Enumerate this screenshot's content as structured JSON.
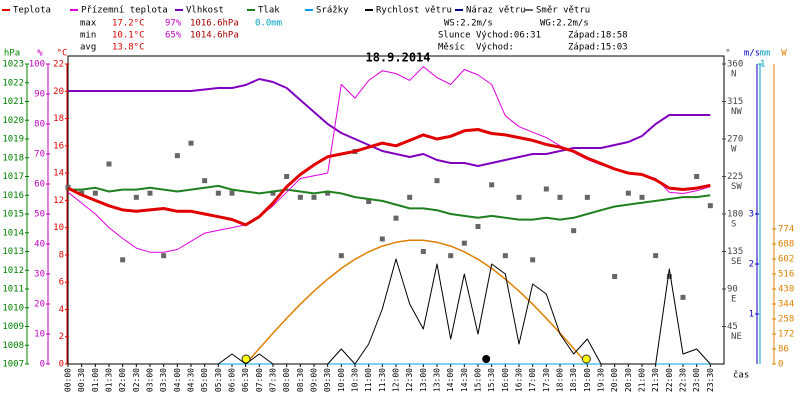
{
  "chart_data": {
    "type": "line",
    "title": "18.9.2014",
    "x_label": "čas",
    "categories": [
      "00:00",
      "00:30",
      "01:00",
      "01:30",
      "02:00",
      "02:30",
      "03:00",
      "03:30",
      "04:00",
      "04:30",
      "05:00",
      "05:30",
      "06:00",
      "06:30",
      "07:00",
      "07:30",
      "08:00",
      "08:30",
      "09:00",
      "09:30",
      "10:00",
      "10:30",
      "11:00",
      "11:30",
      "12:00",
      "12:30",
      "13:00",
      "13:30",
      "14:00",
      "14:30",
      "15:00",
      "15:30",
      "16:00",
      "16:30",
      "17:00",
      "17:30",
      "18:00",
      "18:30",
      "19:00",
      "19:30",
      "20:00",
      "20:30",
      "21:00",
      "21:30",
      "22:00",
      "22:30",
      "23:00",
      "23:30"
    ],
    "axes": {
      "hpa": {
        "label": "hPa",
        "color": "#008000",
        "side": "left",
        "lim": [
          1007,
          1023
        ],
        "ticks": [
          1007,
          1008,
          1009,
          1010,
          1011,
          1012,
          1013,
          1014,
          1015,
          1016,
          1017,
          1018,
          1019,
          1020,
          1021,
          1022,
          1023
        ]
      },
      "pct": {
        "label": "%",
        "color": "#c000c0",
        "side": "left",
        "lim": [
          0,
          100
        ],
        "ticks": [
          0,
          10,
          20,
          30,
          40,
          50,
          60,
          70,
          80,
          90,
          100
        ]
      },
      "temp": {
        "label": "°C",
        "color": "#e00000",
        "side": "left",
        "lim": [
          0,
          22
        ],
        "ticks": [
          0,
          2,
          4,
          6,
          8,
          10,
          12,
          14,
          16,
          18,
          20,
          22
        ]
      },
      "dir": {
        "label": "°",
        "color": "#444444",
        "side": "right",
        "lim": [
          0,
          360
        ],
        "ticks": [
          45,
          90,
          135,
          180,
          225,
          270,
          315,
          360
        ],
        "tick_names": [
          "NE",
          "E",
          "SE",
          "S",
          "SW",
          "W",
          "NW",
          "N"
        ]
      },
      "ms": {
        "label": "m/s",
        "color": "#0000c0",
        "side": "right",
        "lim": [
          0,
          6
        ],
        "ticks": [
          1,
          2,
          3
        ]
      },
      "mm": {
        "label": "mm",
        "color": "#00a0c0",
        "side": "right",
        "lim": [
          0,
          1
        ],
        "ticks": [
          1
        ]
      },
      "w": {
        "label": "W",
        "color": "#e08000",
        "side": "right",
        "lim": [
          0,
          1720
        ],
        "ticks": [
          0,
          86,
          172,
          258,
          344,
          430,
          516,
          602,
          688,
          774
        ]
      }
    },
    "series": [
      {
        "name": "Teplota",
        "color": "#e00000",
        "axis": "temp",
        "style": "line",
        "width": 3,
        "values": [
          12.9,
          12.4,
          12.0,
          11.6,
          11.3,
          11.2,
          11.3,
          11.4,
          11.2,
          11.2,
          11.0,
          10.8,
          10.6,
          10.2,
          10.8,
          11.8,
          13.0,
          13.9,
          14.6,
          15.2,
          15.4,
          15.6,
          15.9,
          16.2,
          16.0,
          16.4,
          16.8,
          16.5,
          16.7,
          17.1,
          17.2,
          16.9,
          16.8,
          16.6,
          16.4,
          16.1,
          15.9,
          15.6,
          15.1,
          14.7,
          14.3,
          14.0,
          13.9,
          13.5,
          12.9,
          12.8,
          12.9,
          13.1
        ]
      },
      {
        "name": "Přízemní teplota",
        "color": "#e000e0",
        "axis": "temp",
        "style": "line",
        "width": 1,
        "values": [
          12.6,
          11.8,
          11.0,
          10.0,
          9.2,
          8.5,
          8.2,
          8.2,
          8.4,
          9.0,
          9.6,
          9.8,
          10.0,
          10.2,
          10.8,
          11.6,
          12.6,
          13.6,
          13.8,
          14.0,
          20.5,
          19.5,
          20.8,
          21.5,
          21.3,
          20.8,
          21.8,
          21.0,
          20.5,
          21.6,
          21.2,
          20.5,
          18.2,
          17.4,
          17.0,
          16.6,
          16.0,
          15.5,
          15.0,
          14.6,
          14.3,
          14.0,
          13.9,
          13.6,
          12.6,
          12.5,
          12.7,
          13.0
        ]
      },
      {
        "name": "Vlhkost",
        "color": "#8000c0",
        "axis": "pct",
        "style": "line",
        "width": 2,
        "values": [
          91,
          91,
          91,
          91,
          91,
          91,
          91,
          91,
          91,
          91,
          91.5,
          92,
          92,
          93,
          95,
          94,
          92,
          88,
          84,
          80,
          77,
          75,
          73,
          71,
          70,
          69,
          70,
          68,
          67,
          67,
          66,
          67,
          68,
          69,
          70,
          70,
          71,
          72,
          72,
          72,
          73,
          74,
          76,
          80,
          83,
          83,
          83,
          83
        ]
      },
      {
        "name": "Tlak",
        "color": "#208020",
        "axis": "hpa",
        "style": "line",
        "width": 2,
        "values": [
          1016.3,
          1016.3,
          1016.4,
          1016.2,
          1016.3,
          1016.3,
          1016.4,
          1016.3,
          1016.2,
          1016.3,
          1016.4,
          1016.5,
          1016.3,
          1016.2,
          1016.1,
          1016.2,
          1016.3,
          1016.2,
          1016.1,
          1016.2,
          1016.1,
          1015.9,
          1015.8,
          1015.7,
          1015.5,
          1015.3,
          1015.3,
          1015.2,
          1015.0,
          1014.9,
          1014.8,
          1014.9,
          1014.8,
          1014.7,
          1014.7,
          1014.8,
          1014.7,
          1014.8,
          1015.0,
          1015.2,
          1015.4,
          1015.5,
          1015.6,
          1015.7,
          1015.8,
          1015.9,
          1015.9,
          1016.0
        ]
      },
      {
        "name": "Srážky",
        "color": "#00a0e0",
        "axis": "mm",
        "style": "line",
        "width": 1,
        "values": [
          0,
          0,
          0,
          0,
          0,
          0,
          0,
          0,
          0,
          0,
          0,
          0,
          0,
          0,
          0,
          0,
          0,
          0,
          0,
          0,
          0,
          0,
          0,
          0,
          0,
          0,
          0,
          0,
          0,
          0,
          0,
          0,
          0,
          0,
          0,
          0,
          0,
          0,
          0,
          0,
          0,
          0,
          0,
          0,
          0,
          0,
          0,
          0
        ]
      },
      {
        "name": "Rychlost větru",
        "color": "#000000",
        "axis": "ms",
        "style": "line",
        "width": 1,
        "values": [
          0,
          0,
          0,
          0,
          0,
          0,
          0,
          0,
          0,
          0,
          0,
          0,
          0.2,
          0,
          0.2,
          0,
          0,
          0,
          0,
          0,
          0.3,
          0,
          0.4,
          1.1,
          2.1,
          1.2,
          0.7,
          2.0,
          0.5,
          1.8,
          0.6,
          2.0,
          1.8,
          0.4,
          1.6,
          1.4,
          0.6,
          0.2,
          0.5,
          0,
          0,
          0,
          0,
          0,
          1.9,
          0.2,
          0.3,
          0
        ]
      },
      {
        "name": "Náraz větru",
        "color": "#000080",
        "axis": "ms",
        "style": "line",
        "width": 1,
        "values": [
          null,
          null,
          null,
          null,
          null,
          null,
          null,
          null,
          null,
          null,
          null,
          null,
          null,
          null,
          null,
          null,
          null,
          null,
          null,
          null,
          null,
          null,
          null,
          null,
          null,
          null,
          null,
          null,
          null,
          null,
          null,
          null,
          null,
          null,
          null,
          null,
          null,
          null,
          null,
          null,
          null,
          null,
          null,
          null,
          null,
          null,
          null,
          null
        ]
      },
      {
        "name": "Směr větru",
        "color": "#666666",
        "axis": "dir",
        "style": "points",
        "width": 1,
        "values": [
          212,
          205,
          205,
          240,
          125,
          200,
          205,
          130,
          250,
          265,
          220,
          205,
          205,
          null,
          null,
          205,
          225,
          200,
          200,
          205,
          130,
          255,
          195,
          150,
          175,
          200,
          135,
          220,
          130,
          145,
          165,
          215,
          130,
          200,
          125,
          210,
          200,
          160,
          200,
          null,
          105,
          205,
          200,
          130,
          105,
          80,
          225,
          190
        ]
      }
    ],
    "sun_curve": {
      "color": "#e08000",
      "axis": "w",
      "values": [
        null,
        null,
        null,
        null,
        null,
        null,
        null,
        null,
        null,
        null,
        null,
        null,
        null,
        0,
        89,
        177,
        262,
        343,
        418,
        487,
        548,
        600,
        643,
        676,
        698,
        710,
        710,
        698,
        676,
        643,
        600,
        548,
        487,
        418,
        343,
        262,
        177,
        89,
        0,
        null,
        null,
        null,
        null,
        null,
        null,
        null,
        null,
        null
      ]
    },
    "stats": {
      "rows": [
        [
          "max",
          "17.2°C",
          "97%",
          "1016.6hPa",
          "0.0mm"
        ],
        [
          "min",
          "10.1°C",
          "65%",
          "1014.6hPa"
        ],
        [
          "avg",
          "13.8°C"
        ]
      ],
      "wind": [
        "WS:2.2m/s",
        "WG:2.2m/s"
      ],
      "sun": [
        "Slunce",
        "Východ:06:31",
        "Západ:18:58"
      ],
      "moon": [
        "Měsíc",
        "Východ:",
        "Západ:15:03"
      ]
    }
  }
}
